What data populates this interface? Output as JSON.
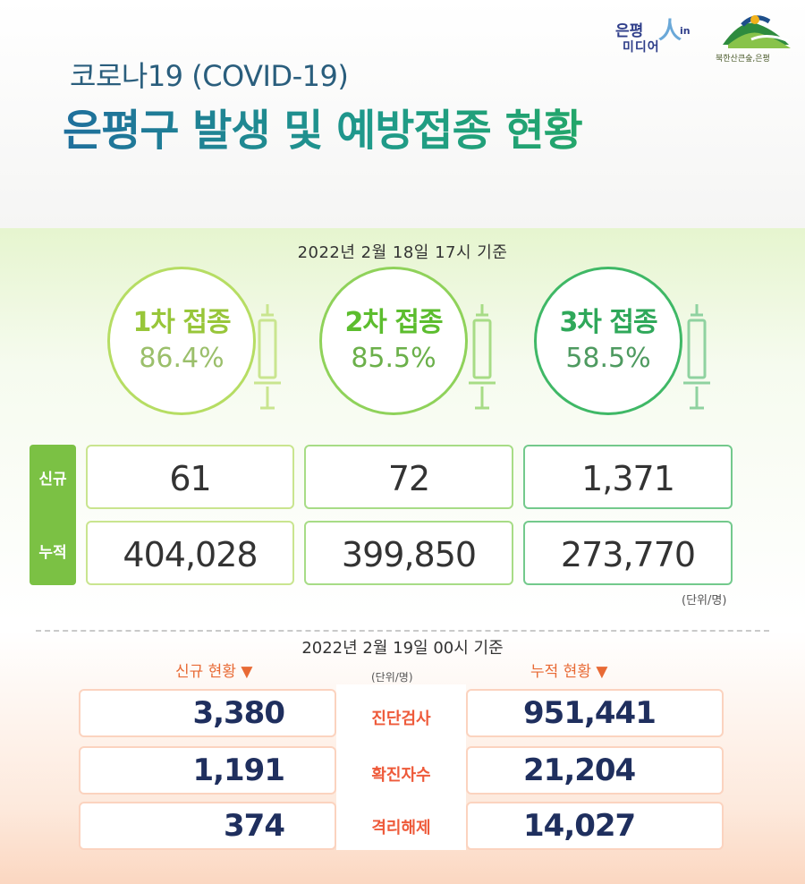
{
  "logos": {
    "media_a": "은평",
    "media_b": "미디어",
    "media_in": "in",
    "gu_caption": "북한산큰숲,은평"
  },
  "title": {
    "sub": "코로나19 (COVID-19)",
    "main": "은평구 발생 및 예방접종 현황"
  },
  "vaccination": {
    "as_of": "2022년 2월 18일 17시 기준",
    "doses": [
      {
        "label": "1차 접종",
        "rate": "86.4%",
        "new": "61",
        "cumulative": "404,028"
      },
      {
        "label": "2차 접종",
        "rate": "85.5%",
        "new": "72",
        "cumulative": "399,850"
      },
      {
        "label": "3차 접종",
        "rate": "58.5%",
        "new": "1,371",
        "cumulative": "273,770"
      }
    ],
    "row_labels": {
      "new": "신규",
      "cumulative": "누적"
    },
    "unit": "(단위/명)"
  },
  "cases": {
    "as_of": "2022년 2월 19일 00시 기준",
    "new_header": "신규 현황 ▼",
    "cumulative_header": "누적 현황 ▼",
    "unit": "(단위/명)",
    "rows": [
      {
        "label": "진단검사",
        "new": "3,380",
        "cumulative": "951,441"
      },
      {
        "label": "확진자수",
        "new": "1,191",
        "cumulative": "21,204"
      },
      {
        "label": "격리해제",
        "new": "374",
        "cumulative": "14,027"
      }
    ]
  },
  "colors": {
    "dose1": "#98c63a",
    "dose2": "#5cbd2e",
    "dose3": "#2fa85a",
    "orange_accent": "#ee5a3a",
    "navy_value": "#1f2f5e"
  }
}
